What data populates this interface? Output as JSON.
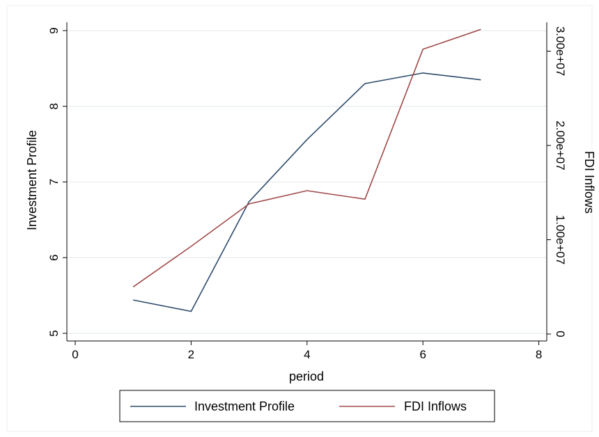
{
  "chart_data": {
    "type": "line",
    "title": "",
    "xlabel": "period",
    "ylabel_left": "Investment Profile",
    "ylabel_right": "FDI Inflows",
    "x": [
      1,
      2,
      3,
      4,
      5,
      6,
      7
    ],
    "xlim": [
      0,
      8
    ],
    "xticks": [
      0,
      2,
      4,
      6,
      8
    ],
    "ylim_left": [
      5,
      9
    ],
    "yticks_left": [
      5,
      6,
      7,
      8,
      9
    ],
    "ylim_right": [
      0,
      31000000
    ],
    "yticks_right": [
      0,
      10000000,
      20000000,
      30000000
    ],
    "yticklabels_right": [
      "0",
      "1.00e+07",
      "2.00e+07",
      "3.00e+07"
    ],
    "grid": true,
    "legend_position": "bottom",
    "series": [
      {
        "name": "Investment Profile",
        "axis": "left",
        "color": "#2d4a6b",
        "values": [
          5.44,
          5.29,
          6.74,
          7.56,
          8.3,
          8.44,
          8.35
        ]
      },
      {
        "name": "FDI Inflows",
        "axis": "right",
        "color": "#a04848",
        "values": [
          5000000,
          9300000,
          13800000,
          15200000,
          14300000,
          30200000,
          32300000
        ]
      }
    ]
  }
}
